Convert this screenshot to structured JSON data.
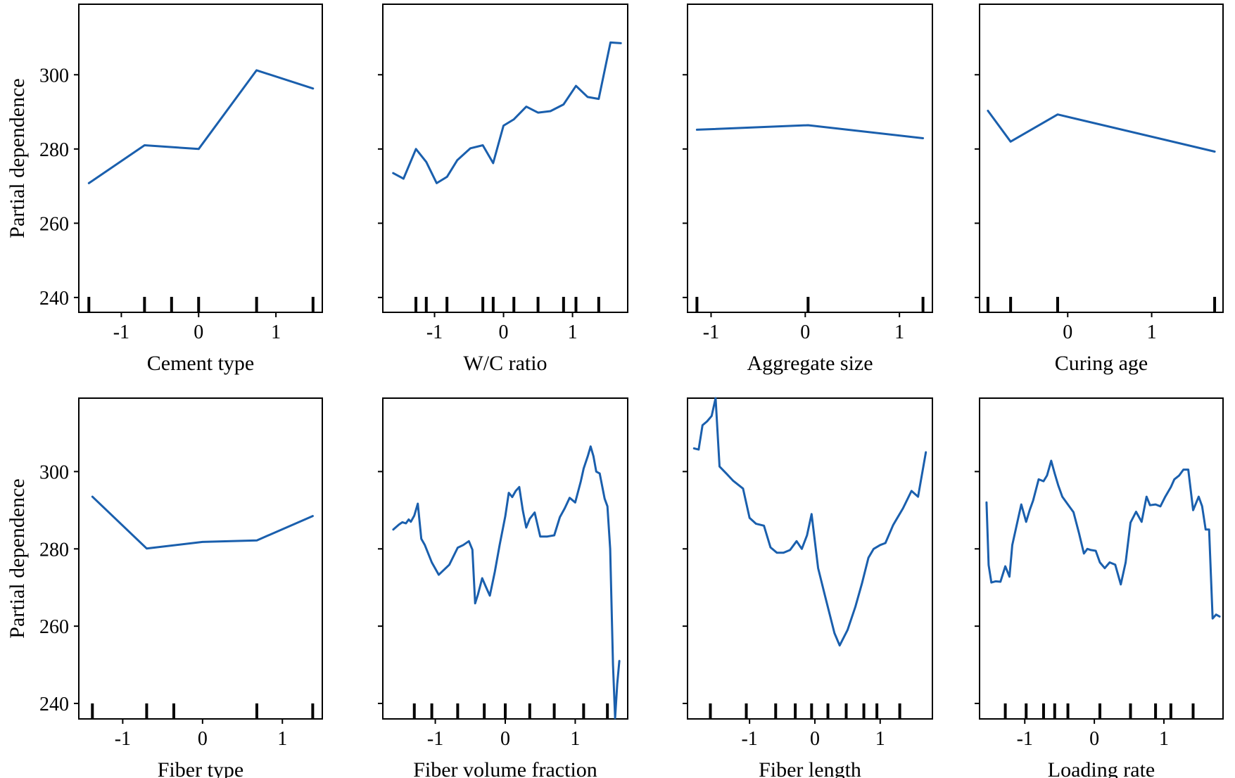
{
  "chart_data": {
    "type": "line",
    "title": "",
    "ylabel": "Partial dependence",
    "yticks": [
      240,
      260,
      280,
      300
    ],
    "ylim": [
      236,
      319
    ],
    "series_color": "#1a5fad",
    "panels": [
      {
        "xlabel": "Cement type",
        "xticks": [
          -1,
          0,
          1
        ],
        "xlim": [
          -1.55,
          1.6
        ],
        "x": [
          -1.42,
          -0.7,
          0.0,
          0.75,
          1.48
        ],
        "y": [
          270.8,
          281.0,
          280.0,
          301.2,
          296.3
        ],
        "rug": [
          -1.42,
          -0.7,
          -0.35,
          0.0,
          0.75,
          1.48
        ]
      },
      {
        "xlabel": "W/C ratio",
        "xticks": [
          -1,
          0,
          1
        ],
        "xlim": [
          -1.75,
          1.8
        ],
        "x": [
          -1.6,
          -1.45,
          -1.27,
          -1.12,
          -0.97,
          -0.82,
          -0.67,
          -0.48,
          -0.3,
          -0.15,
          0.0,
          0.15,
          0.33,
          0.5,
          0.68,
          0.87,
          1.05,
          1.22,
          1.38,
          1.55,
          1.7
        ],
        "y": [
          273.5,
          272.0,
          280.0,
          276.5,
          270.8,
          272.5,
          277.0,
          280.2,
          281.0,
          276.2,
          286.3,
          288.0,
          291.4,
          289.8,
          290.2,
          292.0,
          297.0,
          294.0,
          293.5,
          308.7,
          308.5
        ],
        "rug": [
          -1.27,
          -1.12,
          -0.82,
          -0.3,
          -0.15,
          0.15,
          0.5,
          0.87,
          1.05,
          1.38
        ]
      },
      {
        "xlabel": "Aggregate size",
        "xticks": [
          -1,
          0,
          1
        ],
        "xlim": [
          -1.25,
          1.35
        ],
        "x": [
          -1.15,
          0.03,
          1.25
        ],
        "y": [
          285.2,
          286.4,
          282.9
        ],
        "rug": [
          -1.15,
          0.03,
          1.25
        ]
      },
      {
        "xlabel": "Curing age",
        "xticks": [
          0,
          1
        ],
        "xlim": [
          -1.05,
          1.85
        ],
        "x": [
          -0.95,
          -0.68,
          -0.12,
          1.75
        ],
        "y": [
          290.3,
          282.0,
          289.3,
          279.3
        ],
        "rug": [
          -0.95,
          -0.68,
          -0.12,
          1.75
        ]
      },
      {
        "xlabel": "Fiber type",
        "xticks": [
          -1,
          0,
          1
        ],
        "xlim": [
          -1.55,
          1.5
        ],
        "x": [
          -1.38,
          -0.7,
          0.0,
          0.68,
          1.38
        ],
        "y": [
          293.5,
          280.1,
          281.8,
          282.2,
          288.5
        ],
        "rug": [
          -1.38,
          -0.7,
          -0.36,
          0.68,
          1.38
        ]
      },
      {
        "xlabel": "Fiber volume fraction",
        "xticks": [
          -1,
          0,
          1
        ],
        "xlim": [
          -1.75,
          1.75
        ],
        "x": [
          -1.6,
          -1.52,
          -1.47,
          -1.42,
          -1.38,
          -1.35,
          -1.3,
          -1.25,
          -1.2,
          -1.15,
          -1.05,
          -0.95,
          -0.8,
          -0.68,
          -0.6,
          -0.52,
          -0.47,
          -0.43,
          -0.39,
          -0.33,
          -0.28,
          -0.22,
          -0.15,
          -0.08,
          0.0,
          0.05,
          0.1,
          0.15,
          0.2,
          0.25,
          0.3,
          0.35,
          0.42,
          0.5,
          0.6,
          0.7,
          0.78,
          0.85,
          0.92,
          1.0,
          1.08,
          1.12,
          1.18,
          1.22,
          1.26,
          1.3,
          1.35,
          1.42,
          1.46,
          1.5,
          1.54,
          1.57,
          1.6,
          1.63
        ],
        "y": [
          285.0,
          286.3,
          286.9,
          286.6,
          287.6,
          287.0,
          288.6,
          291.7,
          282.6,
          281.0,
          276.5,
          273.3,
          275.9,
          280.3,
          281.0,
          282.0,
          279.8,
          265.9,
          268.2,
          272.4,
          270.3,
          267.9,
          274.0,
          281.0,
          288.4,
          294.5,
          293.4,
          295.0,
          296.0,
          290.0,
          285.5,
          287.8,
          289.4,
          283.2,
          283.2,
          283.5,
          288.2,
          290.5,
          293.2,
          292.0,
          297.5,
          300.8,
          304.0,
          306.5,
          304.0,
          300.0,
          299.5,
          293.0,
          291.0,
          280.0,
          250.0,
          236.2,
          245.0,
          251.0
        ],
        "rug": [
          -1.3,
          -1.05,
          -0.68,
          -0.3,
          0.0,
          0.35,
          0.7,
          1.12,
          1.46
        ]
      },
      {
        "xlabel": "Fiber length",
        "xticks": [
          -1,
          0,
          1
        ],
        "xlim": [
          -1.95,
          1.8
        ],
        "x": [
          -1.85,
          -1.78,
          -1.72,
          -1.65,
          -1.58,
          -1.52,
          -1.46,
          -1.35,
          -1.25,
          -1.1,
          -1.0,
          -0.9,
          -0.78,
          -0.68,
          -0.58,
          -0.48,
          -0.38,
          -0.28,
          -0.2,
          -0.12,
          -0.05,
          0.05,
          0.15,
          0.3,
          0.38,
          0.5,
          0.62,
          0.72,
          0.82,
          0.9,
          1.0,
          1.08,
          1.2,
          1.35,
          1.48,
          1.58,
          1.7
        ],
        "y": [
          306.0,
          305.7,
          312.0,
          313.0,
          314.4,
          319.0,
          301.3,
          299.4,
          297.6,
          295.6,
          288.0,
          286.5,
          286.0,
          280.4,
          279.0,
          279.0,
          279.7,
          282.0,
          280.0,
          283.5,
          289.0,
          275.0,
          268.2,
          258.2,
          255.0,
          259.0,
          265.0,
          271.0,
          277.7,
          280.0,
          281.0,
          281.5,
          286.2,
          290.5,
          295.0,
          293.5,
          305.0
        ],
        "rug": [
          -1.6,
          -1.05,
          -0.6,
          -0.3,
          -0.05,
          0.2,
          0.48,
          0.75,
          0.95,
          1.3
        ]
      },
      {
        "xlabel": "Loading rate",
        "xticks": [
          -1,
          0,
          1
        ],
        "xlim": [
          -1.65,
          1.85
        ],
        "x": [
          -1.55,
          -1.52,
          -1.48,
          -1.42,
          -1.35,
          -1.28,
          -1.22,
          -1.18,
          -1.1,
          -1.05,
          -0.98,
          -0.93,
          -0.88,
          -0.8,
          -0.73,
          -0.68,
          -0.62,
          -0.57,
          -0.52,
          -0.46,
          -0.38,
          -0.3,
          -0.22,
          -0.15,
          -0.1,
          -0.05,
          0.02,
          0.08,
          0.15,
          0.22,
          0.3,
          0.38,
          0.45,
          0.52,
          0.6,
          0.68,
          0.75,
          0.8,
          0.88,
          0.95,
          1.02,
          1.1,
          1.15,
          1.22,
          1.28,
          1.35,
          1.42,
          1.5,
          1.55,
          1.6,
          1.65,
          1.7,
          1.75,
          1.8
        ],
        "y": [
          292.0,
          275.8,
          271.3,
          271.6,
          271.5,
          275.5,
          272.8,
          281.0,
          287.5,
          291.5,
          287.0,
          290.0,
          292.5,
          298.0,
          297.5,
          299.0,
          302.8,
          299.5,
          296.5,
          293.5,
          291.5,
          289.5,
          284.0,
          278.8,
          280.0,
          279.7,
          279.5,
          276.5,
          275.0,
          276.5,
          275.9,
          270.8,
          276.5,
          286.8,
          289.6,
          287.0,
          293.5,
          291.3,
          291.5,
          291.0,
          293.5,
          296.0,
          298.0,
          299.0,
          300.5,
          300.5,
          290.0,
          293.5,
          291.0,
          285.0,
          285.0,
          262.0,
          263.0,
          262.5
        ],
        "rug": [
          -1.28,
          -0.98,
          -0.73,
          -0.57,
          -0.38,
          0.08,
          0.52,
          0.88,
          1.1,
          1.42
        ]
      }
    ]
  }
}
